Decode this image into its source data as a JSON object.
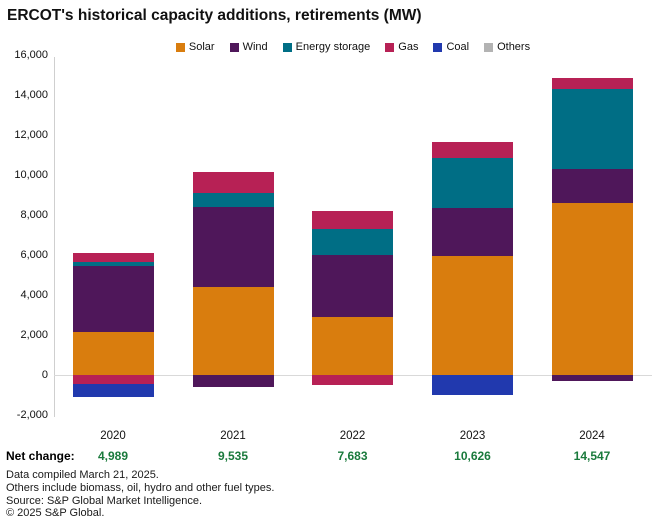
{
  "title": "ERCOT's historical capacity additions, retirements (MW)",
  "legend": [
    {
      "label": "Solar",
      "color": "#D97D0E"
    },
    {
      "label": "Wind",
      "color": "#4F175A"
    },
    {
      "label": "Energy storage",
      "color": "#006E85"
    },
    {
      "label": "Gas",
      "color": "#B72155"
    },
    {
      "label": "Coal",
      "color": "#2139AE"
    },
    {
      "label": "Others",
      "color": "#B3B3B3"
    }
  ],
  "chart_data": {
    "type": "bar",
    "stacked": true,
    "title": "ERCOT's historical capacity additions, retirements (MW)",
    "categories": [
      "2020",
      "2021",
      "2022",
      "2023",
      "2024"
    ],
    "series": [
      {
        "name": "Solar",
        "color": "#D97D0E",
        "values": [
          2150,
          4400,
          2880,
          5970,
          8600
        ]
      },
      {
        "name": "Wind",
        "color": "#4F175A",
        "values": [
          3300,
          4000,
          3120,
          2360,
          1700
        ]
      },
      {
        "name": "Energy storage",
        "color": "#006E85",
        "values": [
          200,
          715,
          1280,
          2500,
          4000
        ]
      },
      {
        "name": "Gas",
        "color": "#B72155",
        "values": [
          450,
          1020,
          900,
          800,
          550
        ]
      },
      {
        "name": "Coal",
        "color": "#2139AE",
        "values": [
          0,
          0,
          0,
          0,
          0
        ]
      },
      {
        "name": "Others",
        "color": "#B3B3B3",
        "values": [
          0,
          0,
          0,
          0,
          0
        ]
      }
    ],
    "retirement_series": [
      {
        "name": "Wind",
        "color": "#4F175A",
        "values": [
          0,
          -600,
          0,
          0,
          -303
        ]
      },
      {
        "name": "Gas",
        "color": "#B72155",
        "values": [
          -460,
          0,
          -497,
          0,
          0
        ]
      },
      {
        "name": "Coal",
        "color": "#2139AE",
        "values": [
          -651,
          0,
          0,
          -1004,
          0
        ]
      }
    ],
    "xlabel": "",
    "ylabel": "",
    "ylim": [
      -2000,
      16000
    ],
    "grid": "zero-line-only",
    "legend_position": "top",
    "yticks": [
      {
        "label": "16,000",
        "value": 16000
      },
      {
        "label": "14,000",
        "value": 14000
      },
      {
        "label": "12,000",
        "value": 12000
      },
      {
        "label": "10,000",
        "value": 10000
      },
      {
        "label": "8,000",
        "value": 8000
      },
      {
        "label": "6,000",
        "value": 6000
      },
      {
        "label": "4,000",
        "value": 4000
      },
      {
        "label": "2,000",
        "value": 2000
      },
      {
        "label": "0",
        "value": 0
      },
      {
        "label": "-2,000",
        "value": -2000
      }
    ]
  },
  "net_change": {
    "label": "Net change:",
    "color": "#1A7A3C",
    "values": [
      "4,989",
      "9,535",
      "7,683",
      "10,626",
      "14,547"
    ]
  },
  "footer": {
    "lines": [
      "Data compiled March 21, 2025.",
      "Others include biomass, oil, hydro and other fuel types.",
      "Source: S&P Global Market Intelligence.",
      "© 2025 S&P Global."
    ]
  }
}
